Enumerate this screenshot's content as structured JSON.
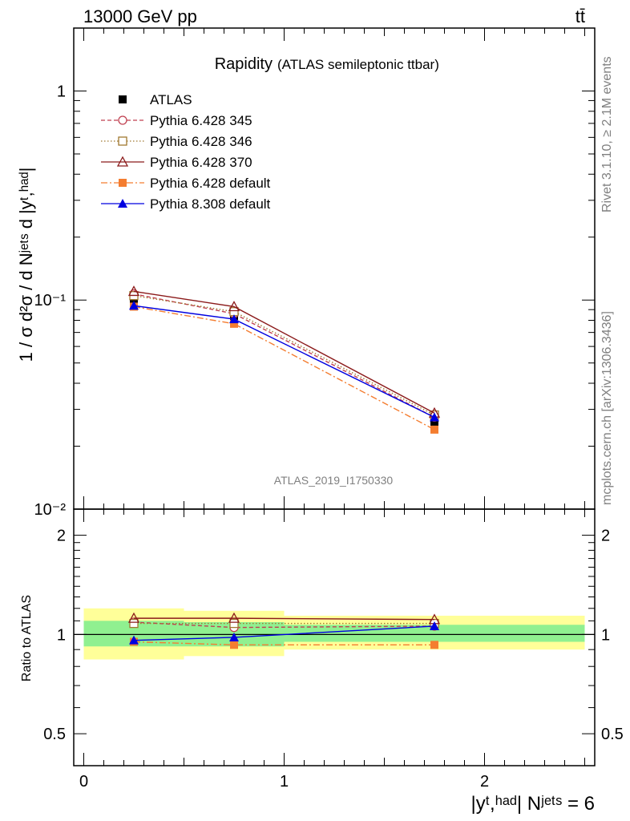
{
  "header": {
    "energy_label": "13000 GeV pp",
    "process_label": "tt̄"
  },
  "side_labels": {
    "rivet": "Rivet 3.1.10, ≥ 2.1M events",
    "mcplots": "mcplots.cern.ch [arXiv:1306.3436]"
  },
  "analysis_id": "ATLAS_2019_I1750330",
  "chart_data": [
    {
      "type": "line",
      "panel": "main",
      "title": "Rapidity",
      "subtitle": "(ATLAS semileptonic ttbar)",
      "ylabel": "1 / σ d²σ / d Nʲᵉᵗˢ d |yᵗ,ʰᵃᵈ|",
      "yscale": "log",
      "ylim": [
        0.01,
        2.0
      ],
      "xlim": [
        -0.05,
        2.55
      ],
      "yticks": [
        {
          "value": 0.01,
          "label": "10⁻²"
        },
        {
          "value": 0.1,
          "label": "10⁻¹"
        },
        {
          "value": 1,
          "label": "1"
        }
      ],
      "legend_position": "top-left",
      "x": [
        0.25,
        0.75,
        1.75
      ],
      "series": [
        {
          "name": "ATLAS",
          "values": [
            0.098,
            0.083,
            0.026
          ],
          "color": "#000000",
          "marker": "filled-square",
          "line": "none"
        },
        {
          "name": "Pythia 6.428 345",
          "values": [
            0.107,
            0.086,
            0.0275
          ],
          "color": "#c04050",
          "marker": "open-circle",
          "line": "dashed"
        },
        {
          "name": "Pythia 6.428 346",
          "values": [
            0.105,
            0.088,
            0.0282
          ],
          "color": "#a07830",
          "marker": "open-square",
          "line": "dotted"
        },
        {
          "name": "Pythia 6.428 370",
          "values": [
            0.11,
            0.093,
            0.0288
          ],
          "color": "#8b1a1a",
          "marker": "open-triangle",
          "line": "solid"
        },
        {
          "name": "Pythia 6.428 default",
          "values": [
            0.093,
            0.077,
            0.024
          ],
          "color": "#f47d30",
          "marker": "filled-square",
          "line": "dashdot"
        },
        {
          "name": "Pythia 8.308 default",
          "values": [
            0.094,
            0.081,
            0.0275
          ],
          "color": "#0000e0",
          "marker": "filled-triangle",
          "line": "solid"
        }
      ]
    },
    {
      "type": "line",
      "panel": "ratio",
      "ylabel": "Ratio to ATLAS",
      "xlabel": "|yᵗ,ʰᵃᵈ| Nʲᵉᵗˢ = 6",
      "ylim": [
        0.4,
        2.4
      ],
      "xlim": [
        -0.05,
        2.55
      ],
      "yticks": [
        0.5,
        1,
        2
      ],
      "xticks": [
        0,
        1,
        2
      ],
      "bands": {
        "bins": [
          [
            0,
            0.5
          ],
          [
            0.5,
            1.0
          ],
          [
            1.0,
            2.5
          ]
        ],
        "stat_band": [
          [
            0.92,
            1.1
          ],
          [
            0.92,
            1.09
          ],
          [
            0.95,
            1.07
          ]
        ],
        "total_band": [
          [
            0.84,
            1.2
          ],
          [
            0.86,
            1.18
          ],
          [
            0.9,
            1.14
          ]
        ],
        "stat_color": "#90f090",
        "total_color": "#ffff99"
      },
      "x": [
        0.25,
        0.75,
        1.75
      ],
      "series": [
        {
          "name": "Pythia 6.428 345",
          "values": [
            1.09,
            1.05,
            1.06
          ],
          "color": "#c04050",
          "marker": "open-circle",
          "line": "dashed"
        },
        {
          "name": "Pythia 6.428 346",
          "values": [
            1.08,
            1.08,
            1.08
          ],
          "color": "#a07830",
          "marker": "open-square",
          "line": "dotted"
        },
        {
          "name": "Pythia 6.428 370",
          "values": [
            1.12,
            1.12,
            1.11
          ],
          "color": "#8b1a1a",
          "marker": "open-triangle",
          "line": "solid"
        },
        {
          "name": "Pythia 6.428 default",
          "values": [
            0.95,
            0.93,
            0.93
          ],
          "color": "#f47d30",
          "marker": "filled-square",
          "line": "dashdot"
        },
        {
          "name": "Pythia 8.308 default",
          "values": [
            0.96,
            0.98,
            1.06
          ],
          "color": "#0000e0",
          "marker": "filled-triangle",
          "line": "solid"
        }
      ]
    }
  ]
}
